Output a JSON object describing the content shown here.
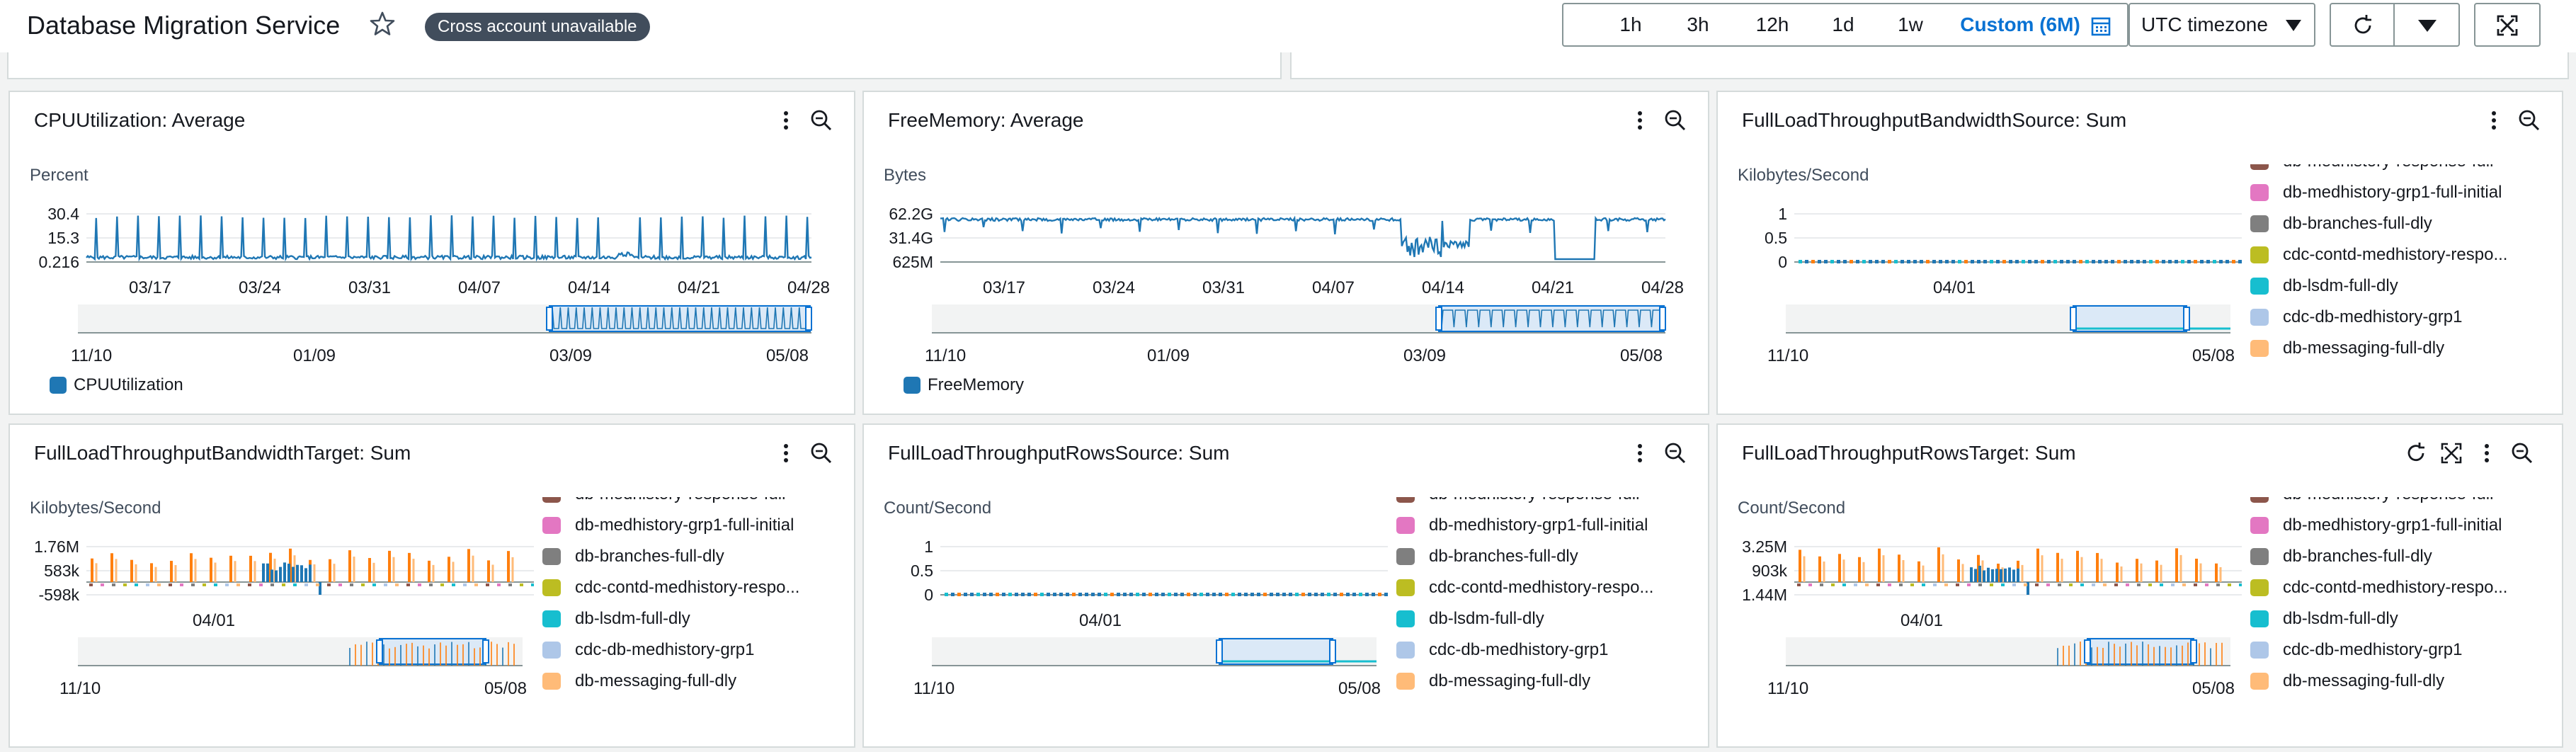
{
  "header": {
    "title": "Database Migration Service",
    "badge": "Cross account unavailable",
    "time_ranges": [
      "1h",
      "3h",
      "12h",
      "1d",
      "1w"
    ],
    "custom_range": "Custom (6M)",
    "timezone": "UTC timezone"
  },
  "colors": {
    "blue": "#1f77b4",
    "orange": "#ff7f0e",
    "accent": "#0972d3",
    "badge_bg": "#414d5c"
  },
  "legend_series": [
    {
      "name": "db-medhistory-response-full",
      "color": "#8c564b"
    },
    {
      "name": "db-medhistory-grp1-full-initial",
      "color": "#e377c2"
    },
    {
      "name": "db-branches-full-dly",
      "color": "#7f7f7f"
    },
    {
      "name": "cdc-contd-medhistory-respo...",
      "color": "#bcbd22"
    },
    {
      "name": "db-lsdm-full-dly",
      "color": "#17becf"
    },
    {
      "name": "cdc-db-medhistory-grp1",
      "color": "#aec7e8"
    },
    {
      "name": "db-messaging-full-dly",
      "color": "#ffbb78"
    }
  ],
  "panels": [
    {
      "title": "CPUUtilization: Average",
      "unit": "Percent",
      "chart_data": {
        "type": "line",
        "ylabel": "Percent",
        "y_ticks": [
          "30.4",
          "15.3",
          "0.216"
        ],
        "x_ticks": [
          "03/17",
          "03/24",
          "03/31",
          "04/07",
          "04/14",
          "04/21",
          "04/28"
        ],
        "overview_ticks": [
          "11/10",
          "01/09",
          "03/09",
          "05/08"
        ],
        "series": [
          {
            "name": "CPUUtilization",
            "color": "#1f77b4"
          }
        ],
        "legend": "bottom"
      }
    },
    {
      "title": "FreeMemory: Average",
      "unit": "Bytes",
      "chart_data": {
        "type": "line",
        "ylabel": "Bytes",
        "y_ticks": [
          "62.2G",
          "31.4G",
          "625M"
        ],
        "x_ticks": [
          "03/17",
          "03/24",
          "03/31",
          "04/07",
          "04/14",
          "04/21",
          "04/28"
        ],
        "overview_ticks": [
          "11/10",
          "01/09",
          "03/09",
          "05/08"
        ],
        "series": [
          {
            "name": "FreeMemory",
            "color": "#1f77b4"
          }
        ],
        "legend": "bottom"
      }
    },
    {
      "title": "FullLoadThroughputBandwidthSource: Sum",
      "unit": "Kilobytes/Second",
      "chart_data": {
        "type": "line",
        "ylabel": "Kilobytes/Second",
        "y_ticks": [
          "1",
          "0.5",
          "0"
        ],
        "x_ticks": [
          "04/01"
        ],
        "overview_ticks": [
          "11/10",
          "05/08"
        ],
        "legend": "right"
      }
    },
    {
      "title": "FullLoadThroughputBandwidthTarget: Sum",
      "unit": "Kilobytes/Second",
      "chart_data": {
        "type": "line",
        "ylabel": "Kilobytes/Second",
        "y_ticks": [
          "1.76M",
          "583k",
          "-598k"
        ],
        "x_ticks": [
          "04/01"
        ],
        "overview_ticks": [
          "11/10",
          "05/08"
        ],
        "legend": "right"
      }
    },
    {
      "title": "FullLoadThroughputRowsSource: Sum",
      "unit": "Count/Second",
      "chart_data": {
        "type": "line",
        "ylabel": "Count/Second",
        "y_ticks": [
          "1",
          "0.5",
          "0"
        ],
        "x_ticks": [
          "04/01"
        ],
        "overview_ticks": [
          "11/10",
          "05/08"
        ],
        "legend": "right"
      }
    },
    {
      "title": "FullLoadThroughputRowsTarget: Sum",
      "unit": "Count/Second",
      "chart_data": {
        "type": "line",
        "ylabel": "Count/Second",
        "y_ticks": [
          "3.25M",
          "903k",
          "1.44M"
        ],
        "x_ticks": [
          "04/01"
        ],
        "overview_ticks": [
          "11/10",
          "05/08"
        ],
        "legend": "right"
      }
    }
  ]
}
